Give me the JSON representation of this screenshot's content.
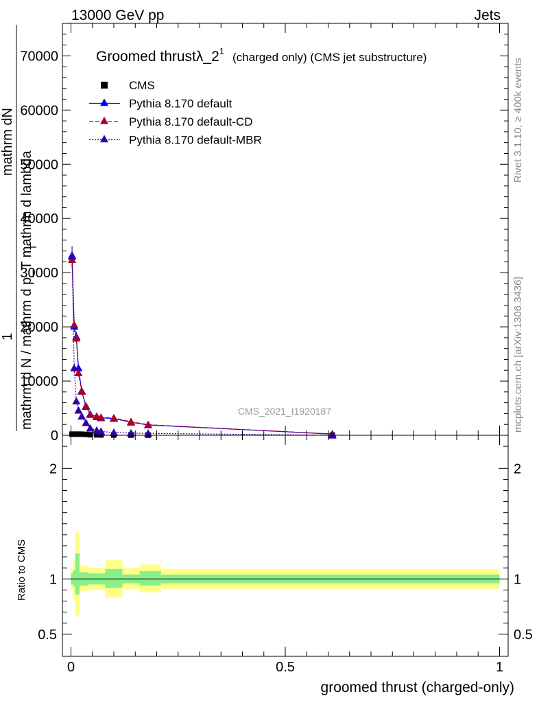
{
  "header": {
    "left": "13000 GeV pp",
    "right": "Jets"
  },
  "side_labels": {
    "rivet": "Rivet 3.1.10, ≥ 400k events",
    "mcplots": "mcplots.cern.ch [arXiv:1306.3436]"
  },
  "watermark": "CMS_2021_I1920187",
  "colors": {
    "cms": "#000000",
    "default": "#0000ff",
    "default_cd": "#aa0022",
    "default_mbr": "#3300aa",
    "band_inner": "#88f088",
    "band_outer": "#ffff88"
  },
  "chart_data": [
    {
      "type": "line",
      "panel": "main",
      "title": "Groomed thrust λ_2¹ (charged only) (CMS jet substructure)",
      "title_parts": {
        "main": "Groomed thrust",
        "symbol": "λ_2",
        "sup": "1",
        "suffix": "(charged only) (CMS jet substructure)"
      },
      "ylabel_lines": [
        "mathrm d N / mathrm d p_T mathrm d lambda",
        "1",
        "mathrm dN"
      ],
      "ylabel_sub": "T",
      "xlim": [
        -0.02,
        1.02
      ],
      "ylim": [
        0,
        76000
      ],
      "yticks": [
        0,
        10000,
        20000,
        30000,
        40000,
        50000,
        60000,
        70000
      ],
      "ytick_labels": [
        "0",
        "10000",
        "20000",
        "30000",
        "40000",
        "50000",
        "60000",
        "70000"
      ],
      "legend_position": "top-left",
      "x": [
        0.0025,
        0.0075,
        0.0125,
        0.0175,
        0.025,
        0.035,
        0.045,
        0.06,
        0.07,
        0.1,
        0.14,
        0.18,
        0.61
      ],
      "series": [
        {
          "name": "CMS",
          "style": "square-markers",
          "values": [
            200,
            200,
            200,
            200,
            200,
            150,
            100,
            80,
            60,
            50,
            40,
            30,
            10
          ]
        },
        {
          "name": "Pythia 8.170 default",
          "style": "solid",
          "values": [
            33200,
            20100,
            18200,
            12400,
            8200,
            5400,
            3900,
            3400,
            3200,
            3100,
            2400,
            1900,
            220
          ],
          "errors": [
            1700,
            1100,
            900,
            700,
            400,
            250,
            150,
            120,
            100,
            100,
            80,
            60,
            20
          ]
        },
        {
          "name": "Pythia 8.170 default-CD",
          "style": "dashed",
          "values": [
            32400,
            20400,
            17900,
            11500,
            8100,
            5300,
            3800,
            3500,
            3300,
            3200,
            2500,
            1950,
            230
          ],
          "errors": [
            1600,
            1100,
            900,
            700,
            400,
            250,
            150,
            120,
            100,
            100,
            80,
            60,
            20
          ]
        },
        {
          "name": "Pythia 8.170 default-MBR",
          "style": "dotted",
          "values": [
            33000,
            12400,
            6300,
            4600,
            3500,
            2300,
            1300,
            900,
            700,
            500,
            400,
            350,
            10
          ],
          "errors": [
            1700,
            900,
            600,
            400,
            300,
            200,
            100,
            80,
            60,
            50,
            40,
            30,
            5
          ]
        }
      ]
    },
    {
      "type": "area",
      "panel": "ratio",
      "ylabel": "Ratio to CMS",
      "xlabel": "groomed thrust (charged-only)",
      "xlim": [
        -0.02,
        1.02
      ],
      "ylim": [
        0.3,
        2.3
      ],
      "xticks": [
        0,
        0.5,
        1
      ],
      "xtick_labels": [
        "0",
        "0.5",
        "1"
      ],
      "yticks": [
        0.5,
        1,
        2
      ],
      "ytick_labels": [
        "0.5",
        "1",
        "2"
      ],
      "bins": [
        {
          "x0": 0.0,
          "x1": 0.005,
          "inner": [
            0.95,
            1.05
          ],
          "outer": [
            0.9,
            1.1
          ]
        },
        {
          "x0": 0.005,
          "x1": 0.01,
          "inner": [
            0.93,
            1.08
          ],
          "outer": [
            0.8,
            1.17
          ]
        },
        {
          "x0": 0.01,
          "x1": 0.02,
          "inner": [
            0.86,
            1.23
          ],
          "outer": [
            0.67,
            1.43
          ]
        },
        {
          "x0": 0.02,
          "x1": 0.04,
          "inner": [
            0.94,
            1.06
          ],
          "outer": [
            0.89,
            1.12
          ]
        },
        {
          "x0": 0.04,
          "x1": 0.08,
          "inner": [
            0.95,
            1.05
          ],
          "outer": [
            0.9,
            1.1
          ]
        },
        {
          "x0": 0.08,
          "x1": 0.12,
          "inner": [
            0.92,
            1.09
          ],
          "outer": [
            0.83,
            1.17
          ]
        },
        {
          "x0": 0.12,
          "x1": 0.16,
          "inner": [
            0.96,
            1.04
          ],
          "outer": [
            0.91,
            1.1
          ]
        },
        {
          "x0": 0.16,
          "x1": 0.21,
          "inner": [
            0.94,
            1.07
          ],
          "outer": [
            0.88,
            1.13
          ]
        },
        {
          "x0": 0.21,
          "x1": 1.0,
          "inner": [
            0.96,
            1.04
          ],
          "outer": [
            0.91,
            1.09
          ]
        }
      ]
    }
  ]
}
